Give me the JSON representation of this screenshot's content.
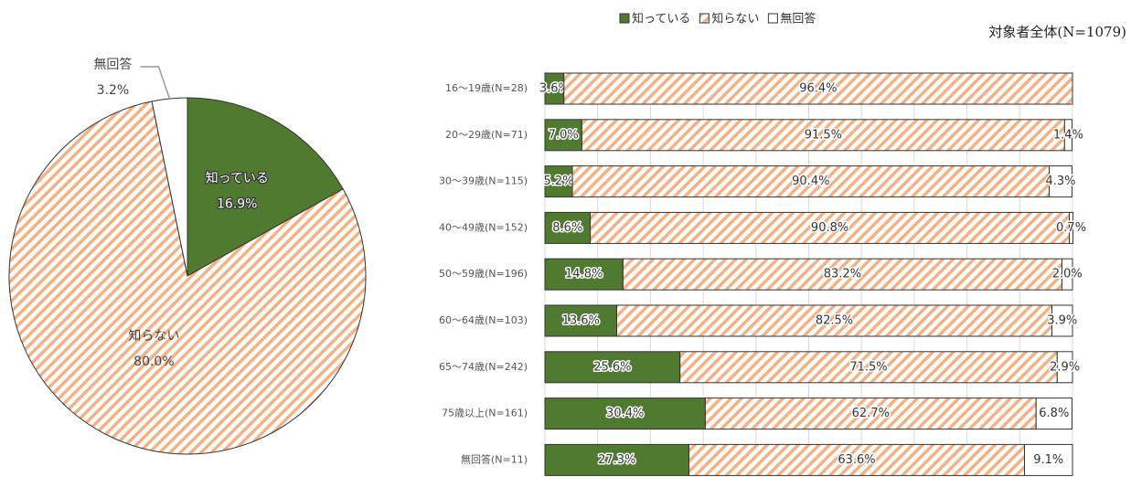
{
  "chart_data": [
    {
      "type": "pie",
      "title": "対象者全体(N=1079)",
      "categories": [
        "知っている",
        "知らない",
        "無回答"
      ],
      "values": [
        16.9,
        80.0,
        3.2
      ],
      "value_labels": [
        "16.9%",
        "80.0%",
        "3.2%"
      ],
      "colors": [
        "#4f7a2f",
        "hatch",
        "#ffffff"
      ]
    },
    {
      "type": "stacked-bar-horizontal",
      "categories": [
        "16～19歳(N=28)",
        "20～29歳(N=71)",
        "30～39歳(N=115)",
        "40～49歳(N=152)",
        "50～59歳(N=196)",
        "60～64歳(N=103)",
        "65～74歳(N=242)",
        "75歳以上(N=161)",
        "無回答(N=11)"
      ],
      "series": [
        {
          "name": "知っている",
          "color": "#4f7a2f",
          "values": [
            3.6,
            7.0,
            5.2,
            8.6,
            14.8,
            13.6,
            25.6,
            30.4,
            27.3
          ],
          "value_labels": [
            "3.6%",
            "7.0%",
            "5.2%",
            "8.6%",
            "14.8%",
            "13.6%",
            "25.6%",
            "30.4%",
            "27.3%"
          ]
        },
        {
          "name": "知らない",
          "color": "hatch",
          "values": [
            96.4,
            91.5,
            90.4,
            90.8,
            83.2,
            82.5,
            71.5,
            62.7,
            63.6
          ],
          "value_labels": [
            "96.4%",
            "91.5%",
            "90.4%",
            "90.8%",
            "83.2%",
            "82.5%",
            "71.5%",
            "62.7%",
            "63.6%"
          ]
        },
        {
          "name": "無回答",
          "color": "#ffffff",
          "values": [
            0,
            1.4,
            4.3,
            0.7,
            2.0,
            3.9,
            2.9,
            6.8,
            9.1
          ],
          "value_labels": [
            null,
            "1.4%",
            "4.3%",
            "0.7%",
            "2.0%",
            "3.9%",
            "2.9%",
            "6.8%",
            "9.1%"
          ]
        }
      ],
      "xlim": [
        0,
        100
      ],
      "xticks": [
        0,
        10,
        20,
        30,
        40,
        50,
        60,
        70,
        80,
        90,
        100
      ],
      "grid": true,
      "legend": "top"
    }
  ]
}
